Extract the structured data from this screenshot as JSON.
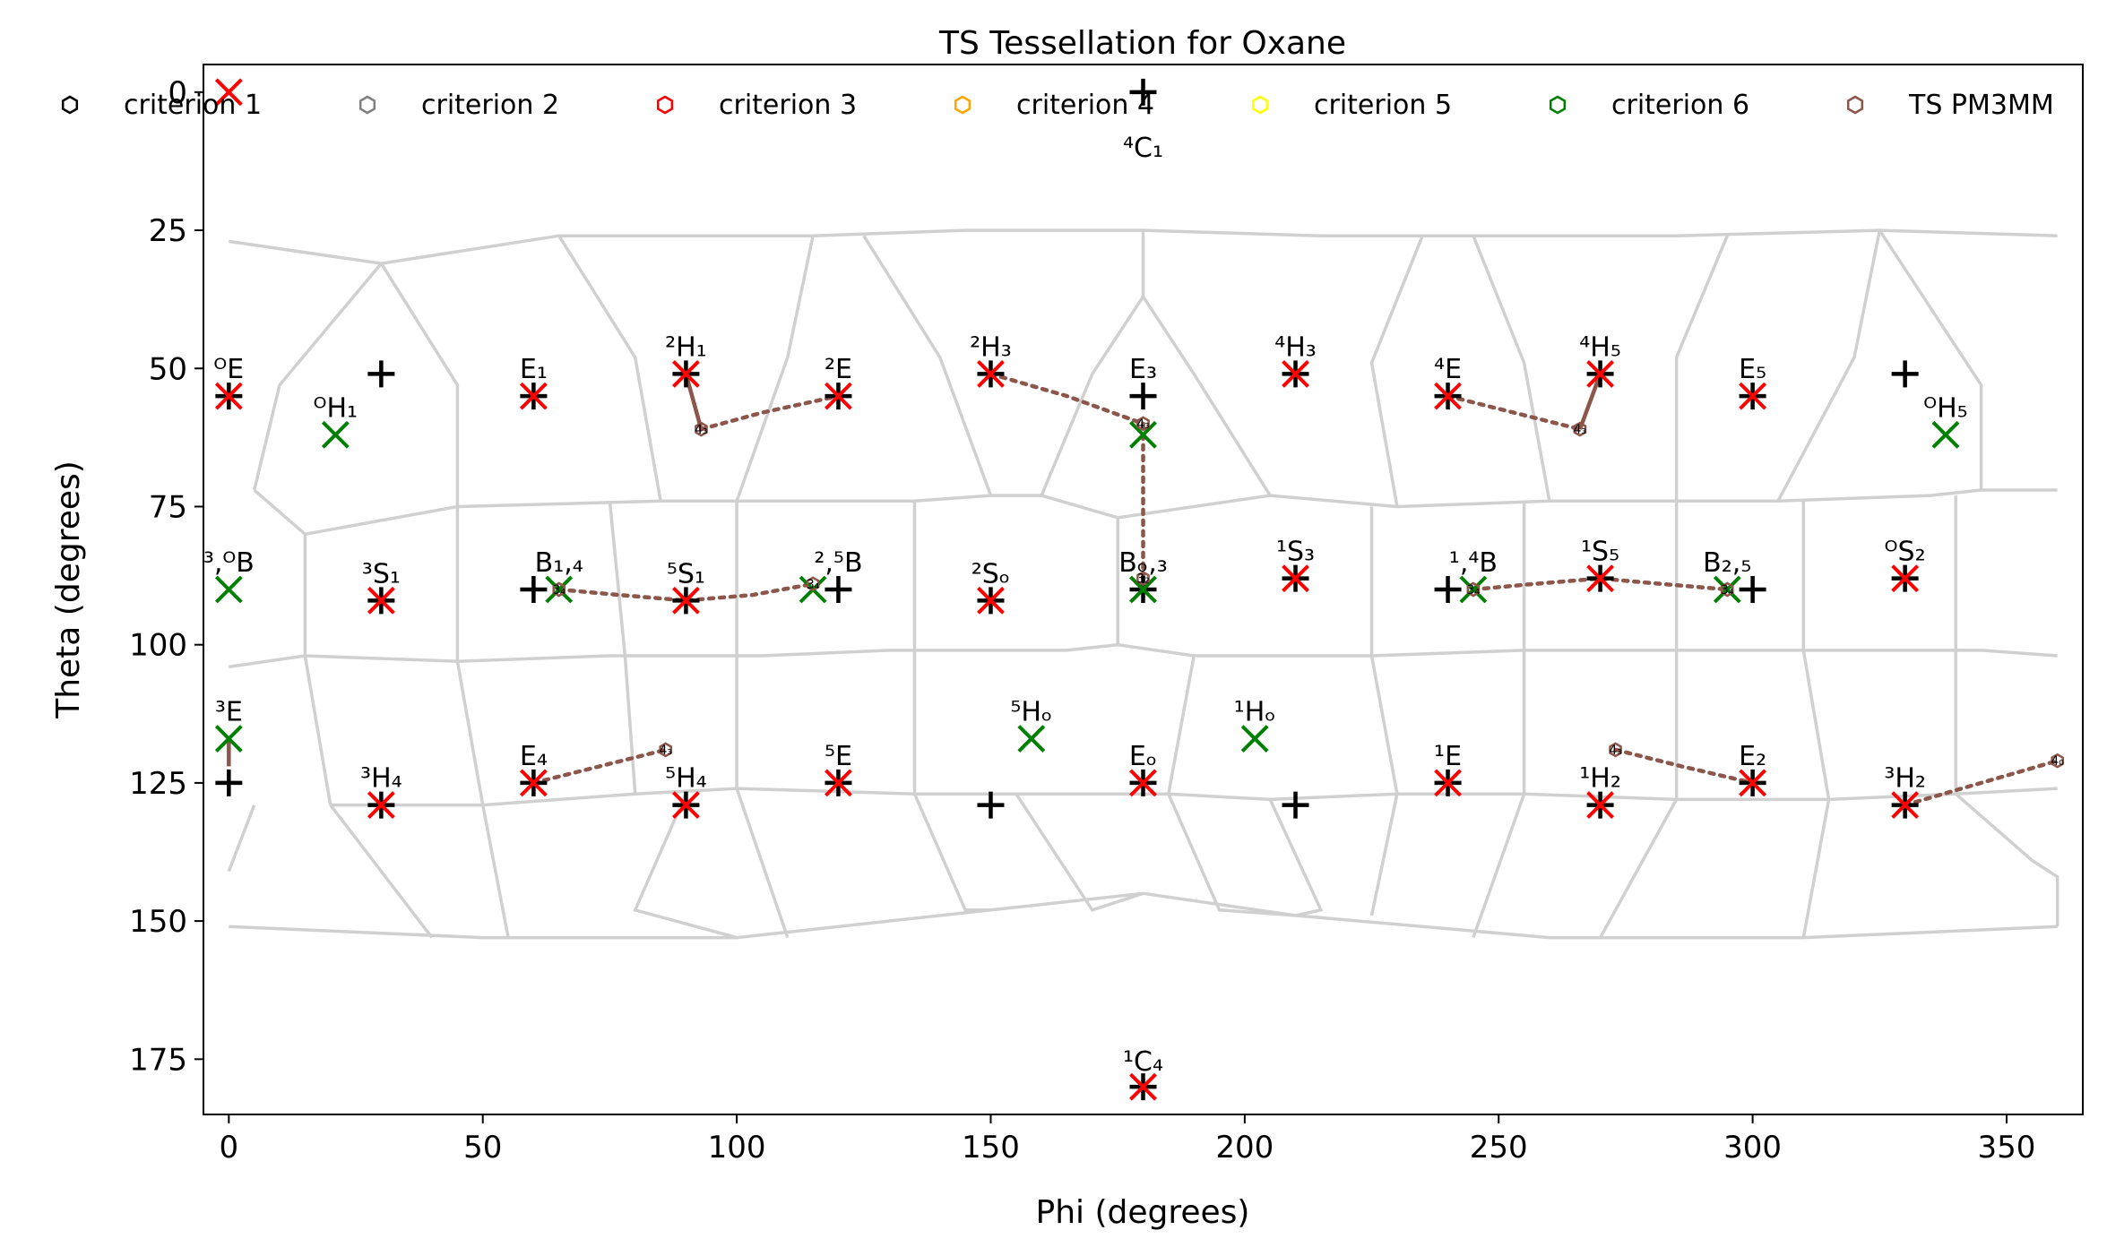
{
  "chart_data": {
    "type": "scatter",
    "title": "TS Tessellation for Oxane",
    "xlabel": "Phi (degrees)",
    "ylabel": "Theta (degrees)",
    "xlim": [
      -5,
      365
    ],
    "ylim": [
      185,
      -5
    ],
    "xticks": [
      0,
      50,
      100,
      150,
      200,
      250,
      300,
      350
    ],
    "yticks": [
      0,
      25,
      50,
      75,
      100,
      125,
      150,
      175
    ],
    "grid": false,
    "legend_position": "top",
    "legend": [
      {
        "label": "criterion 1",
        "color": "#000000"
      },
      {
        "label": "criterion 2",
        "color": "#808080"
      },
      {
        "label": "criterion 3",
        "color": "#ff0000"
      },
      {
        "label": "criterion 4",
        "color": "#ffa500"
      },
      {
        "label": "criterion 5",
        "color": "#ffff00"
      },
      {
        "label": "criterion 6",
        "color": "#008000"
      },
      {
        "label": "TS PM3MM",
        "color": "#8c564b"
      }
    ],
    "colors": {
      "red_x": "#ff0000",
      "green_x": "#008000",
      "plus": "#000000",
      "path": "#8c564b",
      "tessellation": "#d0d0d0"
    },
    "reference_points": [
      [
        180,
        0
      ],
      [
        30,
        51
      ],
      [
        330,
        51
      ],
      [
        180,
        55
      ],
      [
        60,
        90
      ],
      [
        120,
        90
      ],
      [
        180,
        90
      ],
      [
        240,
        90
      ],
      [
        300,
        90
      ],
      [
        0,
        125
      ],
      [
        150,
        129
      ],
      [
        210,
        129
      ],
      [
        180,
        180
      ],
      [
        0,
        55
      ],
      [
        60,
        55
      ],
      [
        90,
        51
      ],
      [
        120,
        55
      ],
      [
        150,
        51
      ],
      [
        210,
        51
      ],
      [
        240,
        55
      ],
      [
        270,
        51
      ],
      [
        300,
        55
      ],
      [
        30,
        92
      ],
      [
        90,
        92
      ],
      [
        150,
        92
      ],
      [
        210,
        88
      ],
      [
        270,
        88
      ],
      [
        330,
        88
      ],
      [
        30,
        129
      ],
      [
        60,
        125
      ],
      [
        90,
        129
      ],
      [
        120,
        125
      ],
      [
        180,
        125
      ],
      [
        240,
        125
      ],
      [
        270,
        129
      ],
      [
        300,
        125
      ],
      [
        330,
        129
      ]
    ],
    "red_points": [
      [
        0,
        0
      ],
      [
        0,
        55
      ],
      [
        60,
        55
      ],
      [
        90,
        51
      ],
      [
        120,
        55
      ],
      [
        150,
        51
      ],
      [
        210,
        51
      ],
      [
        240,
        55
      ],
      [
        270,
        51
      ],
      [
        300,
        55
      ],
      [
        30,
        92
      ],
      [
        90,
        92
      ],
      [
        150,
        92
      ],
      [
        210,
        88
      ],
      [
        270,
        88
      ],
      [
        330,
        88
      ],
      [
        30,
        129
      ],
      [
        60,
        125
      ],
      [
        90,
        129
      ],
      [
        120,
        125
      ],
      [
        180,
        125
      ],
      [
        240,
        125
      ],
      [
        270,
        129
      ],
      [
        300,
        125
      ],
      [
        330,
        129
      ],
      [
        180,
        180
      ]
    ],
    "green_points": [
      [
        21,
        62
      ],
      [
        180,
        62
      ],
      [
        338,
        62
      ],
      [
        0,
        90
      ],
      [
        65,
        90
      ],
      [
        115,
        90
      ],
      [
        180,
        90
      ],
      [
        245,
        90
      ],
      [
        295,
        90
      ],
      [
        0,
        117
      ],
      [
        158,
        117
      ],
      [
        202,
        117
      ]
    ],
    "labels": [
      {
        "x": 0,
        "y": 55,
        "text": "ᴼE"
      },
      {
        "x": 21,
        "y": 62,
        "text": "ᴼH₁"
      },
      {
        "x": 60,
        "y": 55,
        "text": "E₁"
      },
      {
        "x": 90,
        "y": 51,
        "text": "²H₁"
      },
      {
        "x": 120,
        "y": 55,
        "text": "²E"
      },
      {
        "x": 150,
        "y": 51,
        "text": "²H₃"
      },
      {
        "x": 180,
        "y": 55,
        "text": "E₃"
      },
      {
        "x": 210,
        "y": 51,
        "text": "⁴H₃"
      },
      {
        "x": 240,
        "y": 55,
        "text": "⁴E"
      },
      {
        "x": 270,
        "y": 51,
        "text": "⁴H₅"
      },
      {
        "x": 300,
        "y": 55,
        "text": "E₅"
      },
      {
        "x": 338,
        "y": 62,
        "text": "ᴼH₅"
      },
      {
        "x": 0,
        "y": 90,
        "text": "³,ᴼB"
      },
      {
        "x": 30,
        "y": 92,
        "text": "³S₁"
      },
      {
        "x": 65,
        "y": 90,
        "text": "B₁,₄"
      },
      {
        "x": 90,
        "y": 92,
        "text": "⁵S₁"
      },
      {
        "x": 120,
        "y": 90,
        "text": "²,⁵B"
      },
      {
        "x": 150,
        "y": 92,
        "text": "²Sₒ"
      },
      {
        "x": 180,
        "y": 90,
        "text": "Bₒ,₃"
      },
      {
        "x": 210,
        "y": 88,
        "text": "¹S₃"
      },
      {
        "x": 245,
        "y": 90,
        "text": "¹,⁴B"
      },
      {
        "x": 270,
        "y": 88,
        "text": "¹S₅"
      },
      {
        "x": 295,
        "y": 90,
        "text": "B₂,₅"
      },
      {
        "x": 330,
        "y": 88,
        "text": "ᴼS₂"
      },
      {
        "x": 0,
        "y": 117,
        "text": "³E"
      },
      {
        "x": 30,
        "y": 129,
        "text": "³H₄"
      },
      {
        "x": 60,
        "y": 125,
        "text": "E₄"
      },
      {
        "x": 90,
        "y": 129,
        "text": "⁵H₄"
      },
      {
        "x": 120,
        "y": 125,
        "text": "⁵E"
      },
      {
        "x": 158,
        "y": 117,
        "text": "⁵Hₒ"
      },
      {
        "x": 180,
        "y": 125,
        "text": "Eₒ"
      },
      {
        "x": 202,
        "y": 117,
        "text": "¹Hₒ"
      },
      {
        "x": 240,
        "y": 125,
        "text": "¹E"
      },
      {
        "x": 270,
        "y": 129,
        "text": "¹H₂"
      },
      {
        "x": 300,
        "y": 125,
        "text": "E₂"
      },
      {
        "x": 330,
        "y": 129,
        "text": "³H₂"
      },
      {
        "x": 180,
        "y": 0,
        "text": "⁴C₁"
      },
      {
        "x": 180,
        "y": 180,
        "text": "¹C₄"
      }
    ],
    "ts_markers": [
      {
        "x": 93,
        "y": 61,
        "text": "4₃"
      },
      {
        "x": 180,
        "y": 60,
        "text": "4₃"
      },
      {
        "x": 266,
        "y": 61,
        "text": "4₃"
      },
      {
        "x": 65,
        "y": 90,
        "text": "3₄"
      },
      {
        "x": 115,
        "y": 89,
        "text": "3₄"
      },
      {
        "x": 180,
        "y": 88,
        "text": "3₂"
      },
      {
        "x": 245,
        "y": 90,
        "text": "3₄"
      },
      {
        "x": 295,
        "y": 90,
        "text": "3₄"
      },
      {
        "x": 86,
        "y": 119,
        "text": "4₃"
      },
      {
        "x": 273,
        "y": 119,
        "text": "4₃"
      },
      {
        "x": 360,
        "y": 121,
        "text": "4₀"
      }
    ],
    "ts_paths_solid": [
      [
        [
          90,
          51
        ],
        [
          93,
          61
        ]
      ],
      [
        [
          270,
          51
        ],
        [
          266,
          61
        ]
      ],
      [
        [
          0,
          117
        ],
        [
          0,
          122
        ]
      ]
    ],
    "ts_paths_dotted": [
      [
        [
          93,
          61
        ],
        [
          105,
          58
        ],
        [
          120,
          55
        ]
      ],
      [
        [
          150,
          51
        ],
        [
          165,
          55
        ],
        [
          180,
          60
        ]
      ],
      [
        [
          180,
          60
        ],
        [
          180,
          88
        ]
      ],
      [
        [
          240,
          55
        ],
        [
          253,
          58
        ],
        [
          266,
          61
        ]
      ],
      [
        [
          65,
          90
        ],
        [
          77,
          91
        ],
        [
          90,
          92
        ],
        [
          103,
          91
        ],
        [
          115,
          89
        ]
      ],
      [
        [
          245,
          90
        ],
        [
          257,
          89
        ],
        [
          270,
          88
        ],
        [
          282,
          89
        ],
        [
          295,
          90
        ]
      ],
      [
        [
          60,
          125
        ],
        [
          73,
          122
        ],
        [
          86,
          119
        ]
      ],
      [
        [
          273,
          119
        ],
        [
          286,
          122
        ],
        [
          300,
          125
        ]
      ],
      [
        [
          330,
          129
        ],
        [
          345,
          125
        ],
        [
          360,
          121
        ]
      ]
    ],
    "tessellation": [
      [
        [
          0,
          27
        ],
        [
          30,
          31
        ],
        [
          65,
          26
        ],
        [
          115,
          26
        ],
        [
          145,
          25
        ],
        [
          180,
          25
        ],
        [
          215,
          26
        ],
        [
          255,
          26
        ],
        [
          285,
          26
        ],
        [
          325,
          25
        ],
        [
          360,
          26
        ]
      ],
      [
        [
          5,
          72
        ],
        [
          15,
          80
        ],
        [
          45,
          75
        ],
        [
          85,
          74
        ],
        [
          100,
          74
        ],
        [
          135,
          74
        ],
        [
          150,
          73
        ],
        [
          160,
          73
        ],
        [
          175,
          77
        ],
        [
          205,
          73
        ],
        [
          230,
          75
        ],
        [
          260,
          74
        ],
        [
          285,
          74
        ],
        [
          305,
          74
        ],
        [
          335,
          73
        ],
        [
          345,
          72
        ],
        [
          360,
          72
        ]
      ],
      [
        [
          0,
          104
        ],
        [
          15,
          102
        ],
        [
          45,
          103
        ],
        [
          75,
          102
        ],
        [
          105,
          102
        ],
        [
          130,
          101
        ],
        [
          150,
          101
        ],
        [
          165,
          101
        ],
        [
          175,
          100
        ],
        [
          190,
          102
        ],
        [
          205,
          102
        ],
        [
          225,
          102
        ],
        [
          255,
          101
        ],
        [
          285,
          101
        ],
        [
          310,
          101
        ],
        [
          340,
          101
        ],
        [
          345,
          101
        ],
        [
          360,
          102
        ]
      ],
      [
        [
          20,
          129
        ],
        [
          50,
          129
        ],
        [
          80,
          127
        ],
        [
          100,
          126
        ],
        [
          135,
          127
        ],
        [
          155,
          127
        ],
        [
          170,
          127
        ],
        [
          185,
          127
        ],
        [
          205,
          128
        ],
        [
          230,
          127
        ],
        [
          255,
          127
        ],
        [
          285,
          128
        ],
        [
          315,
          128
        ],
        [
          340,
          127
        ],
        [
          360,
          126
        ]
      ],
      [
        [
          0,
          151
        ],
        [
          50,
          153
        ],
        [
          100,
          153
        ],
        [
          150,
          148
        ],
        [
          180,
          145
        ],
        [
          210,
          149
        ],
        [
          260,
          153
        ],
        [
          310,
          153
        ],
        [
          360,
          151
        ]
      ],
      [
        [
          30,
          31
        ],
        [
          10,
          53
        ],
        [
          5,
          72
        ]
      ],
      [
        [
          30,
          31
        ],
        [
          45,
          53
        ],
        [
          45,
          75
        ]
      ],
      [
        [
          65,
          26
        ],
        [
          80,
          48
        ],
        [
          85,
          74
        ]
      ],
      [
        [
          115,
          26
        ],
        [
          110,
          48
        ],
        [
          100,
          74
        ]
      ],
      [
        [
          125,
          26
        ],
        [
          140,
          48
        ],
        [
          150,
          73
        ]
      ],
      [
        [
          180,
          25
        ],
        [
          180,
          37
        ]
      ],
      [
        [
          160,
          73
        ],
        [
          170,
          51
        ],
        [
          180,
          37
        ],
        [
          190,
          51
        ],
        [
          205,
          73
        ]
      ],
      [
        [
          235,
          26
        ],
        [
          225,
          49
        ],
        [
          230,
          75
        ]
      ],
      [
        [
          245,
          26
        ],
        [
          255,
          49
        ],
        [
          260,
          74
        ]
      ],
      [
        [
          295,
          26
        ],
        [
          285,
          48
        ],
        [
          285,
          74
        ]
      ],
      [
        [
          325,
          25
        ],
        [
          320,
          48
        ],
        [
          305,
          74
        ]
      ],
      [
        [
          325,
          25
        ],
        [
          345,
          53
        ],
        [
          345,
          72
        ]
      ],
      [
        [
          15,
          80
        ],
        [
          15,
          102
        ],
        [
          20,
          129
        ]
      ],
      [
        [
          45,
          75
        ],
        [
          45,
          103
        ],
        [
          50,
          129
        ]
      ],
      [
        [
          75,
          74
        ],
        [
          78,
          102
        ],
        [
          80,
          127
        ]
      ],
      [
        [
          100,
          74
        ],
        [
          100,
          102
        ],
        [
          100,
          126
        ]
      ],
      [
        [
          135,
          74
        ],
        [
          135,
          101
        ],
        [
          135,
          127
        ]
      ],
      [
        [
          175,
          77
        ],
        [
          175,
          100
        ]
      ],
      [
        [
          190,
          102
        ],
        [
          185,
          127
        ]
      ],
      [
        [
          225,
          75
        ],
        [
          225,
          102
        ],
        [
          230,
          127
        ]
      ],
      [
        [
          255,
          74
        ],
        [
          255,
          101
        ],
        [
          255,
          127
        ]
      ],
      [
        [
          285,
          74
        ],
        [
          285,
          101
        ],
        [
          285,
          128
        ]
      ],
      [
        [
          310,
          74
        ],
        [
          310,
          101
        ],
        [
          315,
          128
        ]
      ],
      [
        [
          340,
          73
        ],
        [
          340,
          101
        ],
        [
          340,
          127
        ]
      ],
      [
        [
          5,
          129
        ],
        [
          0,
          141
        ]
      ],
      [
        [
          20,
          129
        ],
        [
          40,
          153
        ]
      ],
      [
        [
          50,
          129
        ],
        [
          55,
          153
        ]
      ],
      [
        [
          90,
          127
        ],
        [
          80,
          148
        ],
        [
          100,
          153
        ]
      ],
      [
        [
          100,
          126
        ],
        [
          110,
          153
        ]
      ],
      [
        [
          135,
          127
        ],
        [
          145,
          148
        ],
        [
          150,
          148
        ]
      ],
      [
        [
          155,
          127
        ],
        [
          170,
          148
        ],
        [
          180,
          145
        ]
      ],
      [
        [
          185,
          127
        ],
        [
          195,
          148
        ],
        [
          210,
          149
        ]
      ],
      [
        [
          205,
          128
        ],
        [
          215,
          148
        ],
        [
          210,
          149
        ]
      ],
      [
        [
          230,
          127
        ],
        [
          225,
          149
        ]
      ],
      [
        [
          255,
          127
        ],
        [
          245,
          153
        ]
      ],
      [
        [
          285,
          128
        ],
        [
          270,
          153
        ]
      ],
      [
        [
          315,
          128
        ],
        [
          310,
          153
        ]
      ],
      [
        [
          340,
          127
        ],
        [
          355,
          139
        ],
        [
          360,
          142
        ],
        [
          360,
          151
        ]
      ]
    ]
  }
}
